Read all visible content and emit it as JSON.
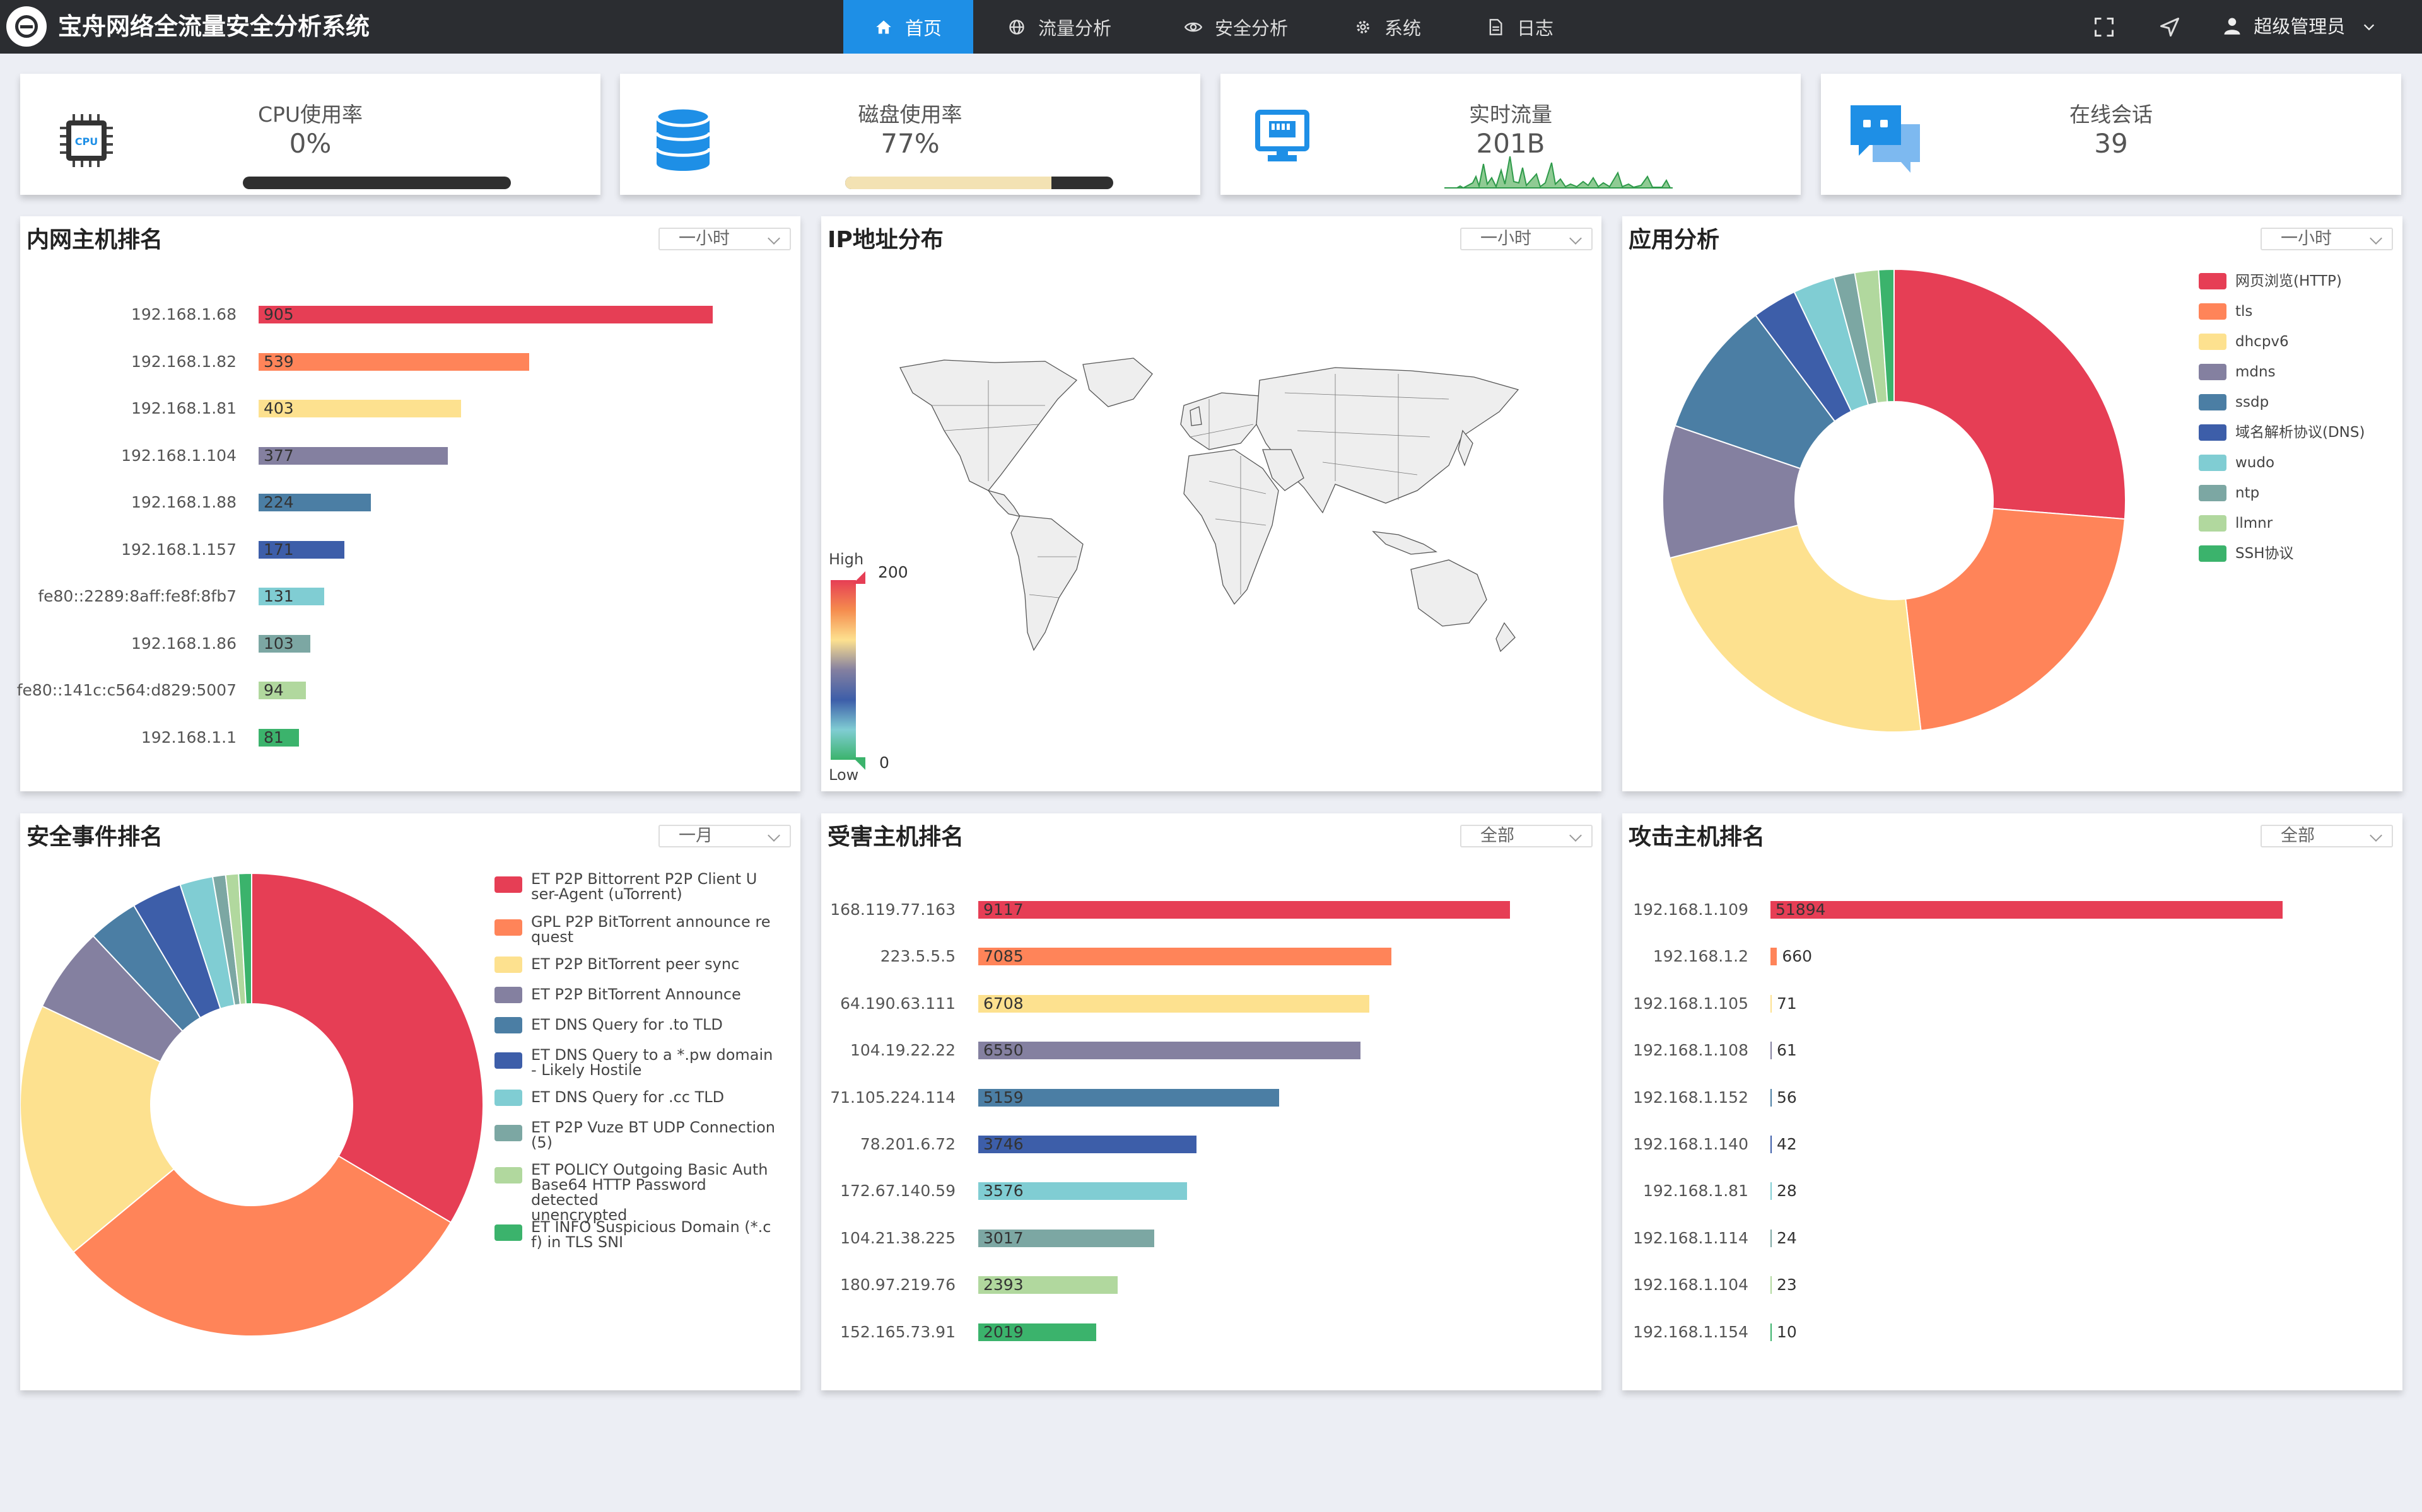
{
  "app": {
    "title": "宝舟网络全流量安全分析系统"
  },
  "nav": [
    {
      "label": "首页",
      "icon": "home-icon",
      "active": true
    },
    {
      "label": "流量分析",
      "icon": "globe-icon"
    },
    {
      "label": "安全分析",
      "icon": "eye-icon"
    },
    {
      "label": "系统",
      "icon": "gear-icon"
    },
    {
      "label": "日志",
      "icon": "document-icon"
    }
  ],
  "user": {
    "name": "超级管理员"
  },
  "stats": {
    "cpu": {
      "label": "CPU使用率",
      "value": "0%",
      "progress": 0,
      "icon": "cpu-chip-icon",
      "chip_text": "CPU"
    },
    "disk": {
      "label": "磁盘使用率",
      "value": "77%",
      "progress": 0.77,
      "icon": "database-icon"
    },
    "traffic": {
      "label": "实时流量",
      "value": "201B",
      "icon": "network-port-icon"
    },
    "sessions": {
      "label": "在线会话",
      "value": "39",
      "icon": "chat-bubbles-icon"
    }
  },
  "colors": {
    "palette": [
      "#e63e55",
      "#ff8459",
      "#fde18f",
      "#8480a0",
      "#4b7ea4",
      "#3d5ea9",
      "#80cdd3",
      "#7ca7a3",
      "#b1d89e",
      "#3bb36c"
    ],
    "accent": "#1e8fe6",
    "topbar": "#2b2d31"
  },
  "panels": {
    "internal_hosts": {
      "title": "内网主机排名",
      "filter": "一小时",
      "chart_data": {
        "type": "bar",
        "orientation": "horizontal",
        "categories": [
          "192.168.1.68",
          "192.168.1.82",
          "192.168.1.81",
          "192.168.1.104",
          "192.168.1.88",
          "192.168.1.157",
          "fe80::2289:8aff:fe8f:8fb7",
          "192.168.1.86",
          "fe80::141c:c564:d829:5007",
          "192.168.1.1"
        ],
        "values": [
          905,
          539,
          403,
          377,
          224,
          171,
          131,
          103,
          94,
          81
        ]
      }
    },
    "ip_distribution": {
      "title": "IP地址分布",
      "filter": "一小时",
      "visual_map": {
        "high_label": "High",
        "low_label": "Low",
        "max": "200",
        "min": "0"
      }
    },
    "app_analysis": {
      "title": "应用分析",
      "filter": "一小时",
      "chart_data": {
        "type": "pie",
        "style": "donut",
        "labels": [
          "网页浏览(HTTP)",
          "tls",
          "dhcpv6",
          "mdns",
          "ssdp",
          "域名解析协议(DNS)",
          "wudo",
          "ntp",
          "llmnr",
          "SSH协议"
        ],
        "values": [
          27,
          22.5,
          23.5,
          9.5,
          9.8,
          3.2,
          3.0,
          1.5,
          1.7,
          1.1
        ],
        "legend": "top-right"
      }
    },
    "security_events": {
      "title": "安全事件排名",
      "filter": "一月",
      "chart_data": {
        "type": "pie",
        "style": "donut",
        "labels": [
          "ET P2P Bittorrent P2P Client User-Agent (uTorrent)",
          "GPL P2P BitTorrent announce request",
          "ET P2P BitTorrent peer sync",
          "ET P2P BitTorrent Announce",
          "ET DNS Query for .to TLD",
          "ET DNS Query to a *.pw domain - Likely Hostile",
          "ET DNS Query for .cc TLD",
          "ET P2P Vuze BT UDP Connection (5)",
          "ET POLICY Outgoing Basic Auth Base64 HTTP Password detected unencrypted",
          "ET INFO Suspicious Domain (*.cf) in TLS SNI"
        ],
        "legend_lines": [
          [
            "ET P2P Bittorrent P2P Client U",
            "ser-Agent (uTorrent)"
          ],
          [
            "GPL P2P BitTorrent announce re",
            "quest"
          ],
          [
            "ET P2P BitTorrent peer sync"
          ],
          [
            "ET P2P BitTorrent Announce"
          ],
          [
            "ET DNS Query for .to TLD"
          ],
          [
            "ET DNS Query to a *.pw domain",
            "- Likely Hostile"
          ],
          [
            "ET DNS Query for .cc TLD"
          ],
          [
            "ET P2P Vuze BT UDP Connection",
            "(5)"
          ],
          [
            "ET POLICY Outgoing Basic Auth",
            "Base64 HTTP Password detected",
            "unencrypted"
          ],
          [
            "ET INFO Suspicious Domain (*.c",
            "f) in TLS SNI"
          ]
        ],
        "values": [
          33.5,
          30.5,
          18,
          6,
          3.5,
          3.5,
          2.3,
          0.9,
          0.9,
          0.9
        ],
        "legend": "right"
      }
    },
    "victim_hosts": {
      "title": "受害主机排名",
      "filter": "全部",
      "chart_data": {
        "type": "bar",
        "orientation": "horizontal",
        "categories": [
          "168.119.77.163",
          "223.5.5.5",
          "64.190.63.111",
          "104.19.22.22",
          "71.105.224.114",
          "78.201.6.72",
          "172.67.140.59",
          "104.21.38.225",
          "180.97.219.76",
          "152.165.73.91"
        ],
        "values": [
          9117,
          7085,
          6708,
          6550,
          5159,
          3746,
          3576,
          3017,
          2393,
          2019
        ]
      }
    },
    "attack_hosts": {
      "title": "攻击主机排名",
      "filter": "全部",
      "chart_data": {
        "type": "bar",
        "orientation": "horizontal",
        "categories": [
          "192.168.1.109",
          "192.168.1.2",
          "192.168.1.105",
          "192.168.1.108",
          "192.168.1.152",
          "192.168.1.140",
          "192.168.1.81",
          "192.168.1.114",
          "192.168.1.104",
          "192.168.1.154"
        ],
        "values": [
          51894,
          660,
          71,
          61,
          56,
          42,
          28,
          24,
          23,
          10
        ]
      }
    }
  }
}
